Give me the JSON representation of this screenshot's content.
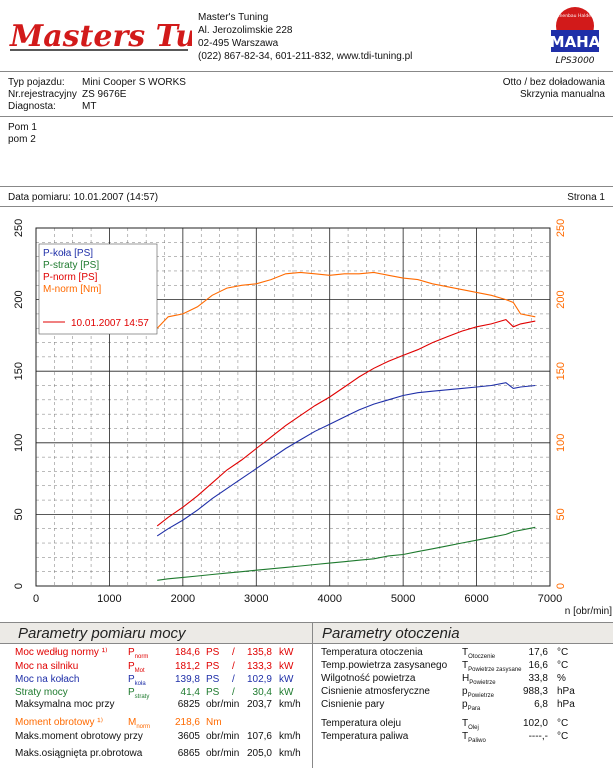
{
  "header": {
    "logo_text": "Masters Tuning",
    "company": "Master's Tuning",
    "address1": "Al. Jerozolimskie 228",
    "address2": "02-495 Warszawa",
    "contact": "(022) 867-82-34, 601-211-832, www.tdi-tuning.pl",
    "maha_top": "Maschinenbau Haldenwang",
    "maha_brand": "MAHA",
    "maha_model": "LPS3000"
  },
  "vehicle": {
    "type_label": "Typ pojazdu:",
    "type_value": "Mini Cooper S WORKS",
    "reg_label": "Nr.rejestracyjny",
    "reg_value": "ZS 9676E",
    "diag_label": "Diagnosta:",
    "diag_value": "MT",
    "engine": "Otto / bez doładowania",
    "gearbox": "Skrzynia manualna"
  },
  "notes": {
    "line1": "Pom 1",
    "line2": "pom 2"
  },
  "measure": {
    "date": "Data pomiaru: 10.01.2007 (14:57)",
    "page": "Strona 1"
  },
  "chart_data": {
    "type": "line",
    "xlabel": "n [obr/min]",
    "xlim": [
      0,
      7000
    ],
    "xticks": [
      0,
      1000,
      2000,
      3000,
      4000,
      5000,
      6000,
      7000
    ],
    "ylim": [
      0,
      250
    ],
    "yticks": [
      0,
      50,
      100,
      150,
      200,
      250
    ],
    "y2lim": [
      0,
      250
    ],
    "grid": true,
    "legend_position": "top-left",
    "legend_date": "10.01.2007 14:57",
    "x": [
      1650,
      1800,
      2000,
      2200,
      2400,
      2600,
      2800,
      3000,
      3200,
      3400,
      3600,
      3800,
      4000,
      4200,
      4400,
      4600,
      4800,
      5000,
      5200,
      5400,
      5600,
      5800,
      6000,
      6200,
      6400,
      6500,
      6600,
      6800
    ],
    "series": [
      {
        "name": "P-koła [PS]",
        "color": "#1f2fa8",
        "values": [
          35,
          40,
          46,
          53,
          61,
          68,
          75,
          82,
          89,
          96,
          102,
          108,
          113,
          118,
          123,
          127,
          130,
          133,
          135,
          136,
          137,
          138,
          139,
          140,
          142,
          138,
          139,
          140
        ]
      },
      {
        "name": "P-straty [PS]",
        "color": "#1e7a2e",
        "values": [
          4,
          5,
          6,
          7,
          8,
          9,
          10,
          11,
          12,
          13,
          14,
          15,
          16,
          17,
          18,
          19,
          21,
          22,
          24,
          26,
          28,
          30,
          32,
          34,
          36,
          38,
          39,
          41
        ]
      },
      {
        "name": "P-norm [PS]",
        "color": "#e00000",
        "values": [
          42,
          48,
          55,
          63,
          72,
          81,
          88,
          96,
          104,
          112,
          119,
          126,
          132,
          139,
          146,
          152,
          157,
          161,
          165,
          170,
          174,
          178,
          181,
          183,
          186,
          181,
          183,
          185
        ]
      },
      {
        "name": "M-norm [Nm]",
        "color": "#ff6a00",
        "values": [
          180,
          188,
          190,
          195,
          203,
          208,
          210,
          211,
          214,
          218,
          219,
          218,
          217,
          218,
          218,
          219,
          217,
          215,
          214,
          211,
          209,
          207,
          205,
          203,
          200,
          198,
          190,
          188
        ]
      }
    ]
  },
  "params": {
    "title": "Parametry pomiaru mocy",
    "rows": [
      {
        "label": "Moc według normy ¹⁾",
        "sym": "P",
        "sub": "norm",
        "v1": "184,6",
        "u1": "PS",
        "sep": "/",
        "v2": "135,8",
        "u2": "kW",
        "color": "#e00000"
      },
      {
        "label": "Moc na silniku",
        "sym": "P",
        "sub": "Mot",
        "v1": "181,2",
        "u1": "PS",
        "sep": "/",
        "v2": "133,3",
        "u2": "kW",
        "color": "#e00000"
      },
      {
        "label": "Moc na kołach",
        "sym": "P",
        "sub": "koła",
        "v1": "139,8",
        "u1": "PS",
        "sep": "/",
        "v2": "102,9",
        "u2": "kW",
        "color": "#1f2fa8"
      },
      {
        "label": "Straty mocy",
        "sym": "P",
        "sub": "straty",
        "v1": "41,4",
        "u1": "PS",
        "sep": "/",
        "v2": "30,4",
        "u2": "kW",
        "color": "#1e7a2e"
      },
      {
        "label": "Maksymalna moc przy",
        "sym": "",
        "sub": "",
        "v1": "6825",
        "u1": "obr/min",
        "sep": "",
        "v2": "203,7",
        "u2": "km/h",
        "color": "#111111"
      },
      {
        "label": "Moment obrotowy ¹⁾",
        "sym": "M",
        "sub": "norm",
        "v1": "218,6",
        "u1": "Nm",
        "sep": "",
        "v2": "",
        "u2": "",
        "color": "#ff6a00"
      },
      {
        "label": "Maks.moment obrotowy przy",
        "sym": "",
        "sub": "",
        "v1": "3605",
        "u1": "obr/min",
        "sep": "",
        "v2": "107,6",
        "u2": "km/h",
        "color": "#111111"
      },
      {
        "label": "Maks.osiągnięta pr.obrotowa",
        "sym": "",
        "sub": "",
        "v1": "6865",
        "u1": "obr/min",
        "sep": "",
        "v2": "205,0",
        "u2": "km/h",
        "color": "#111111"
      }
    ]
  },
  "ambient": {
    "title": "Parametry otoczenia",
    "rows": [
      {
        "label": "Temperatura otoczenia",
        "sym": "T",
        "sub": "Otoczenie",
        "v": "17,6",
        "u": "°C"
      },
      {
        "label": "Temp.powietrza zasysanego",
        "sym": "T",
        "sub": "Powietrze zasysane",
        "v": "16,6",
        "u": "°C"
      },
      {
        "label": "Wilgotność powietrza",
        "sym": "H",
        "sub": "Powietrze",
        "v": "33,8",
        "u": "%"
      },
      {
        "label": "Cisnienie atmosferyczne",
        "sym": "p",
        "sub": "Powietrze",
        "v": "988,3",
        "u": "hPa"
      },
      {
        "label": "Cisnienie pary",
        "sym": "p",
        "sub": "Para",
        "v": "6,8",
        "u": "hPa"
      },
      {
        "label": "Temperatura oleju",
        "sym": "T",
        "sub": "Olej",
        "v": "102,0",
        "u": "°C"
      },
      {
        "label": "Temperatura paliwa",
        "sym": "T",
        "sub": "Paliwo",
        "v": "----,-",
        "u": "°C"
      }
    ]
  }
}
